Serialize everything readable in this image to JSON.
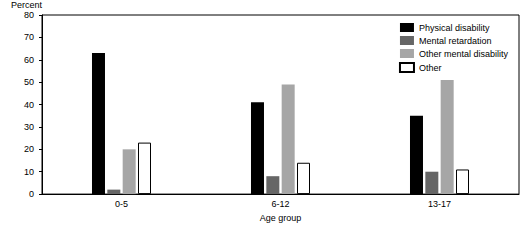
{
  "chart_data": {
    "type": "bar",
    "y_label": "Percent",
    "x_label": "Age group",
    "categories": [
      "0-5",
      "6-12",
      "13-17"
    ],
    "series": [
      {
        "name": "Physical disability",
        "color": "#000000",
        "values": [
          63,
          41,
          35
        ]
      },
      {
        "name": "Mental retardation",
        "color": "#666666",
        "values": [
          2,
          8,
          10
        ]
      },
      {
        "name": "Other mental disability",
        "color": "#a6a6a6",
        "values": [
          20,
          49,
          51
        ]
      },
      {
        "name": "Other",
        "color": "#ffffff",
        "values": [
          23,
          14,
          11
        ]
      }
    ],
    "ylim": [
      0,
      80
    ],
    "yticks": [
      0,
      10,
      20,
      30,
      40,
      50,
      60,
      70,
      80
    ],
    "grid": false,
    "legend": "upper right"
  }
}
